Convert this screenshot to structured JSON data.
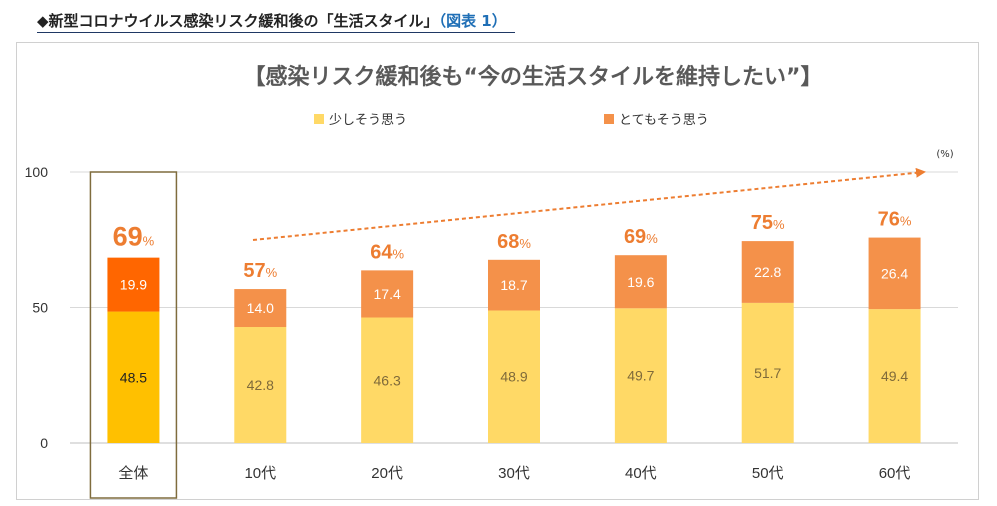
{
  "heading": {
    "marker": "◆",
    "text": "新型コロナウイルス感染リスク緩和後の「生活スタイル」",
    "ref": "（図表 1）"
  },
  "chart_data": {
    "type": "bar",
    "stacked": true,
    "title": "【感染リスク緩和後も“今の生活スタイルを維持したい”】",
    "unit": "(%)",
    "categories": [
      "全体",
      "10代",
      "20代",
      "30代",
      "40代",
      "50代",
      "60代"
    ],
    "series": [
      {
        "name": "少しそう思う",
        "values": [
          48.5,
          42.8,
          46.3,
          48.9,
          49.7,
          51.7,
          49.4
        ]
      },
      {
        "name": "とてもそう思う",
        "values": [
          19.9,
          14.0,
          17.4,
          18.7,
          19.6,
          22.8,
          26.4
        ]
      }
    ],
    "totals": [
      69,
      57,
      64,
      68,
      69,
      75,
      76
    ],
    "total_suffix": "%",
    "yticks": [
      0,
      50,
      100
    ],
    "ylim": [
      0,
      100
    ],
    "grid": true,
    "legend_position": "top",
    "highlight_category": "全体",
    "colors": {
      "light": "#ffd966",
      "dark": "#f4914a",
      "highlight_light": "#ffc000",
      "highlight_dark": "#ff6600",
      "total_label": "#ed7d31",
      "trend_arrow": "#ed7d31",
      "highlight_box": "#7f6c3d"
    }
  }
}
